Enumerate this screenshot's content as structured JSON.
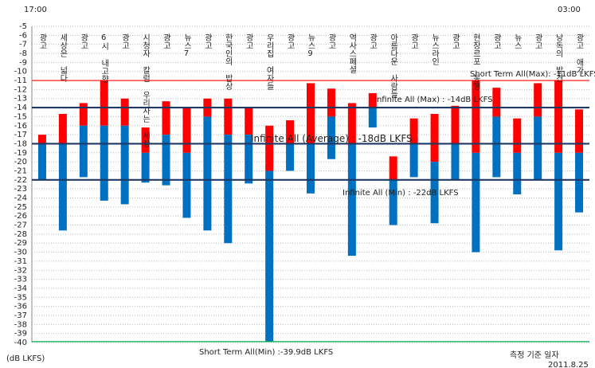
{
  "chart_data": {
    "type": "floating-bar",
    "time_start": "17:00",
    "time_end": "03:00",
    "y_unit_label": "(dB LKFS)",
    "date_caption": "측정 기준 일자",
    "date": "2011.8.25",
    "categories": [
      "광고",
      "세상은 넓다",
      "광고",
      "6시 내고향",
      "광고",
      "시청자 칼럼 우리사는 세상",
      "광고",
      "뉴스7",
      "광고",
      "한국인의 밥상",
      "광고",
      "우리집 여자들",
      "광고",
      "뉴스9",
      "광고",
      "역사스페셜",
      "광고",
      "아름다운 사람들",
      "광고",
      "뉴스라인",
      "광고",
      "현장르포 동행",
      "광고",
      "뉴스",
      "광고",
      "낭독의 발견",
      "광고 애가"
    ],
    "max": [
      -17,
      -14.7,
      -13.5,
      -11,
      -13,
      -16.2,
      -13.3,
      -14,
      -13,
      -13,
      -14,
      -16,
      -15.4,
      -11.3,
      -11.9,
      -13.5,
      -12.4,
      -19.4,
      -15.2,
      -14.7,
      -13.8,
      -11,
      -11.8,
      -15.2,
      -11.3,
      -11,
      -14.2
    ],
    "mid": [
      -18,
      -18,
      -16,
      -16,
      -16,
      -19,
      -17,
      -19,
      -15,
      -17,
      -17,
      -21,
      -18,
      -18,
      -15,
      -18,
      -14,
      -22,
      -18,
      -20,
      -18,
      -19,
      -15,
      -19,
      -15,
      -19,
      -19
    ],
    "min": [
      -22,
      -27.6,
      -21.7,
      -24.3,
      -24.7,
      -22.3,
      -22.6,
      -26.2,
      -27.6,
      -29,
      -22.4,
      -39.9,
      -21,
      -23.5,
      -19.7,
      -30.4,
      -16.2,
      -27,
      -21.7,
      -26.8,
      -22,
      -30,
      -21.7,
      -23.6,
      -22,
      -29.8,
      -25.6
    ],
    "upper_color": "#ff0000",
    "lower_color": "#0070c0",
    "lines": [
      {
        "label": "Short Term All(Max): -11dB LKFS",
        "value": -11,
        "color": "#ff0000"
      },
      {
        "label": "Infinite All (Max) : -14dB LKFS",
        "value": -14,
        "color": "#1f3864"
      },
      {
        "label": "Infinite All (Average) : -18dB LKFS",
        "value": -18,
        "color": "#1f3864"
      },
      {
        "label": "Infinite All (Min) : -22dB LKFS",
        "value": -22,
        "color": "#1f3864"
      },
      {
        "label": "Short Term All(Min) :-39.9dB LKFS",
        "value": -39.9,
        "color": "#00b050"
      }
    ],
    "ylim": [
      -5,
      -40
    ],
    "yticks": [
      -5,
      -6,
      -7,
      -8,
      -9,
      -10,
      -11,
      -12,
      -13,
      -14,
      -15,
      -16,
      -17,
      -18,
      -19,
      -20,
      -21,
      -22,
      -23,
      -24,
      -25,
      -26,
      -27,
      -28,
      -29,
      -30,
      -31,
      -32,
      -33,
      -34,
      -35,
      -36,
      -37,
      -38,
      -39,
      -40
    ],
    "grid": true
  }
}
